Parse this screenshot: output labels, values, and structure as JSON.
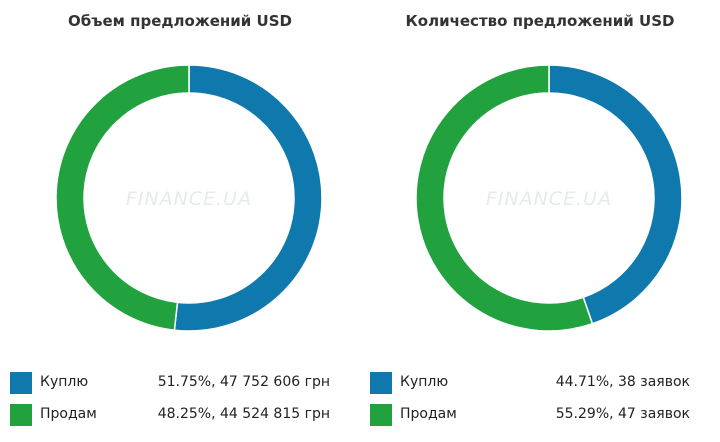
{
  "colors": {
    "buy": "#0f78ad",
    "sell": "#22a23e"
  },
  "watermark": "FINANCE.UA",
  "chart_data": [
    {
      "type": "pie",
      "title": "Объем предложений USD",
      "slices": [
        {
          "label": "Куплю",
          "value": 51.75,
          "text": "51.75%, 47 752 606 грн",
          "color": "#0f78ad"
        },
        {
          "label": "Продам",
          "value": 48.25,
          "text": "48.25%, 44 524 815 грн",
          "color": "#22a23e"
        }
      ]
    },
    {
      "type": "pie",
      "title": "Количество предложений USD",
      "slices": [
        {
          "label": "Куплю",
          "value": 44.71,
          "text": "44.71%, 38 заявок",
          "color": "#0f78ad"
        },
        {
          "label": "Продам",
          "value": 55.29,
          "text": "55.29%, 47 заявок",
          "color": "#22a23e"
        }
      ]
    }
  ]
}
